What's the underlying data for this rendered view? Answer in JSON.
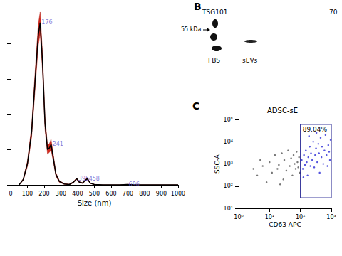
{
  "chart_data": [
    {
      "type": "line",
      "x_label": "Size (nm)",
      "x": [
        50,
        75,
        100,
        125,
        150,
        165,
        176,
        190,
        205,
        220,
        232,
        241,
        255,
        270,
        290,
        320,
        350,
        375,
        395,
        410,
        430,
        445,
        458,
        475,
        500,
        550,
        650,
        696,
        750,
        800,
        900,
        1000
      ],
      "values": [
        0,
        0.3,
        1.2,
        3.0,
        6.5,
        8.5,
        9.2,
        7.0,
        3.5,
        2.0,
        2.1,
        2.3,
        1.5,
        0.6,
        0.2,
        0.05,
        0.02,
        0.15,
        0.35,
        0.15,
        0.1,
        0.25,
        0.35,
        0.1,
        0.02,
        0,
        0,
        0.02,
        0,
        0,
        0,
        0
      ],
      "error": [
        0,
        0.05,
        0.15,
        0.3,
        0.5,
        0.6,
        0.6,
        0.5,
        0.35,
        0.25,
        0.25,
        0.3,
        0.2,
        0.1,
        0.05,
        0.02,
        0.02,
        0.03,
        0.05,
        0.03,
        0.02,
        0.04,
        0.05,
        0.02,
        0.01,
        0,
        0,
        0.01,
        0,
        0,
        0,
        0
      ],
      "color": "#000000",
      "peak_labels": [
        176,
        241,
        395,
        458,
        696
      ],
      "xlim": [
        0,
        1000
      ],
      "xticks": [
        0,
        100,
        200,
        300,
        400,
        500,
        600,
        700,
        800,
        900,
        1000
      ],
      "ylim": [
        0,
        10
      ],
      "yticks": [
        0,
        2,
        4,
        6,
        8,
        10
      ],
      "tick_labels": "x",
      "grid": false
    },
    {
      "type": "scatter",
      "panel": "C",
      "title": "ADSC-sE",
      "x_label": "CD63 APC",
      "y_label": "SSC-A",
      "log": true,
      "xlim": [
        1,
        1000
      ],
      "xticks": [
        {
          "value": 1,
          "label": "10⁰"
        },
        {
          "value": 10,
          "label": "10¹"
        },
        {
          "value": 100,
          "label": "10²"
        },
        {
          "value": 1000,
          "label": "10³"
        }
      ],
      "ylim": [
        10,
        100000
      ],
      "yticks": [
        {
          "value": 10,
          "label": "10¹"
        },
        {
          "value": 100,
          "label": "10²"
        },
        {
          "value": 1000,
          "label": "10³"
        },
        {
          "value": 10000,
          "label": "10⁴"
        },
        {
          "value": 100000,
          "label": "10⁵"
        }
      ],
      "grid": false,
      "series": [
        {
          "color": "#555555",
          "x": [
            4,
            6,
            8,
            10,
            12,
            15,
            18,
            20,
            25,
            28,
            30,
            35,
            40,
            45,
            50,
            55,
            60,
            65,
            70,
            75,
            80,
            85,
            90,
            95,
            5,
            3,
            22
          ],
          "values": [
            300,
            800,
            150,
            1200,
            400,
            2500,
            600,
            900,
            3000,
            200,
            1500,
            500,
            4000,
            800,
            1800,
            300,
            2500,
            1000,
            600,
            3500,
            1200,
            700,
            2000,
            400,
            1500,
            600,
            120
          ]
        },
        {
          "color": "#2b2bd6",
          "x": [
            110,
            120,
            130,
            140,
            150,
            160,
            170,
            180,
            200,
            210,
            220,
            240,
            260,
            280,
            300,
            320,
            350,
            380,
            400,
            420,
            450,
            480,
            500,
            550,
            600,
            650,
            700,
            750,
            800,
            850,
            900,
            950,
            125,
            190,
            330
          ],
          "values": [
            1500,
            600,
            2500,
            900,
            4000,
            1200,
            300,
            2000,
            6000,
            800,
            3000,
            1500,
            10000,
            700,
            2500,
            5000,
            1200,
            8000,
            3000,
            400,
            15000,
            2000,
            6000,
            1000,
            4000,
            20000,
            2500,
            800,
            7000,
            3500,
            1500,
            12000,
            250,
            18000,
            25000
          ]
        }
      ],
      "gate": {
        "xlim": [
          100,
          1000
        ],
        "ylim": [
          30,
          60000
        ],
        "label": "89.04%"
      }
    }
  ],
  "blot": {
    "panel": "B",
    "protein": "TSG101",
    "marker": "55 kDa",
    "lanes": [
      "FBS",
      "sEVs"
    ],
    "other": "70"
  }
}
